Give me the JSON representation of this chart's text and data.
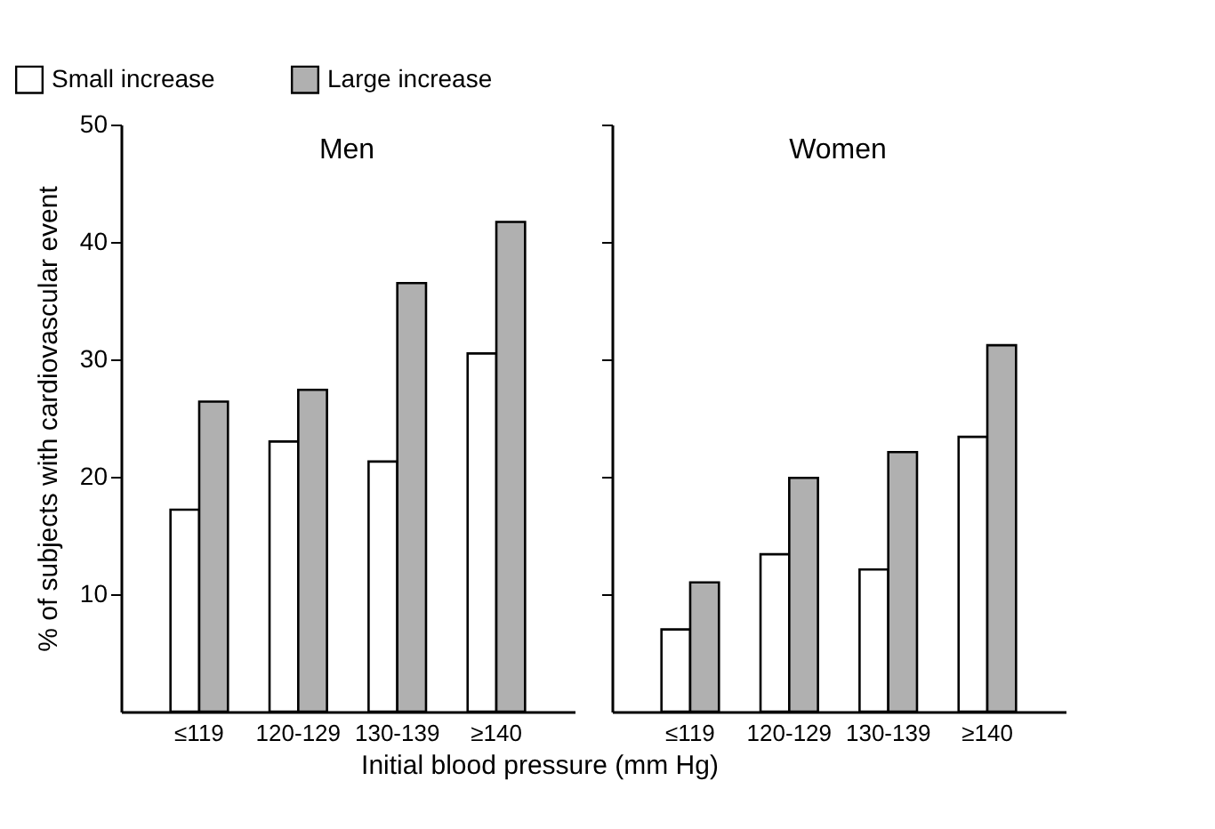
{
  "chart_data": [
    {
      "type": "bar",
      "title": "Men",
      "xlabel": "Initial blood pressure (mm Hg)",
      "ylabel": "% of subjects with cardiovascular event",
      "categories": [
        "≤119",
        "120-129",
        "130-139",
        "≥140"
      ],
      "series": [
        {
          "name": "Small increase",
          "color": "#ffffff",
          "values": [
            17.2,
            23.0,
            21.3,
            30.5
          ]
        },
        {
          "name": "Large increase",
          "color": "#b0b0b0",
          "values": [
            26.4,
            27.4,
            36.5,
            41.7
          ]
        }
      ],
      "ylim": [
        0,
        50
      ],
      "yticks": [
        10,
        20,
        30,
        40,
        50
      ],
      "grid": false,
      "legend": "top left"
    },
    {
      "type": "bar",
      "title": "Women",
      "categories": [
        "≤119",
        "120-129",
        "130-139",
        "≥140"
      ],
      "series": [
        {
          "name": "Small increase",
          "color": "#ffffff",
          "values": [
            7.0,
            13.4,
            12.1,
            23.4
          ]
        },
        {
          "name": "Large increase",
          "color": "#b0b0b0",
          "values": [
            11.0,
            19.9,
            22.1,
            31.2
          ]
        }
      ],
      "ylim": [
        0,
        50
      ],
      "yticks": [
        10,
        20,
        30,
        40,
        50
      ],
      "grid": false,
      "tick_labels": "x"
    }
  ]
}
